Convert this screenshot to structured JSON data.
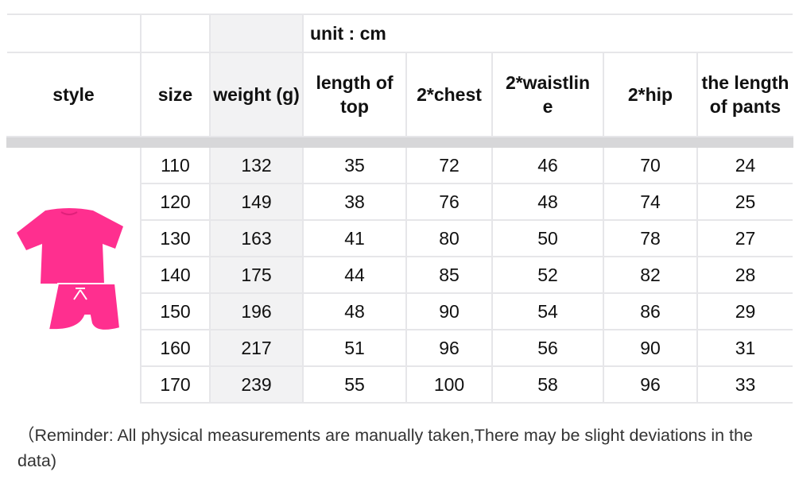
{
  "unit_label": "unit : cm",
  "headers": [
    "style",
    "size",
    "weight (g)",
    "length of top",
    "2*chest",
    "2*waistline",
    "2*hip",
    "the length of pants"
  ],
  "header_display": {
    "style": "style",
    "size": "size",
    "weight": "weight (g)",
    "length_top": "length of top",
    "chest": "2*chest",
    "waist": "2*waistlin e",
    "hip": "2*hip",
    "pants": "the length of pants"
  },
  "style_image": {
    "icon": "pink-tshirt-and-shorts-set",
    "color": "#ff2f8f"
  },
  "rows": [
    {
      "size": "110",
      "weight": "132",
      "length_top": "35",
      "chest": "72",
      "waist": "46",
      "hip": "70",
      "pants": "24"
    },
    {
      "size": "120",
      "weight": "149",
      "length_top": "38",
      "chest": "76",
      "waist": "48",
      "hip": "74",
      "pants": "25"
    },
    {
      "size": "130",
      "weight": "163",
      "length_top": "41",
      "chest": "80",
      "waist": "50",
      "hip": "78",
      "pants": "27"
    },
    {
      "size": "140",
      "weight": "175",
      "length_top": "44",
      "chest": "85",
      "waist": "52",
      "hip": "82",
      "pants": "28"
    },
    {
      "size": "150",
      "weight": "196",
      "length_top": "48",
      "chest": "90",
      "waist": "54",
      "hip": "86",
      "pants": "29"
    },
    {
      "size": "160",
      "weight": "217",
      "length_top": "51",
      "chest": "96",
      "waist": "56",
      "hip": "90",
      "pants": "31"
    },
    {
      "size": "170",
      "weight": "239",
      "length_top": "55",
      "chest": "100",
      "waist": "58",
      "hip": "96",
      "pants": "33"
    }
  ],
  "note": "（Reminder: All physical measurements are manually taken,There may be slight deviations in the data)"
}
